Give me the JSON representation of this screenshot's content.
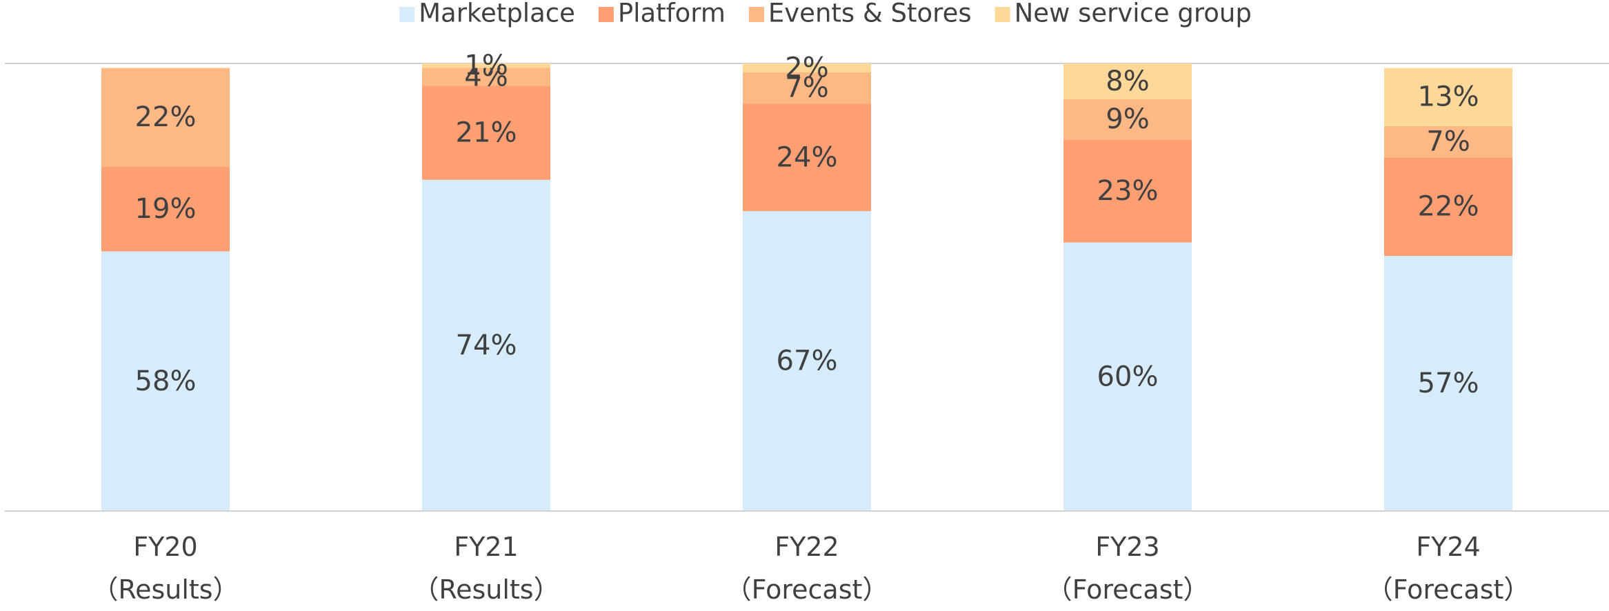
{
  "chart_data": {
    "type": "stacked_bar",
    "categories": [
      "FY20\n（Results）",
      "FY21\n（Results）",
      "FY22\n（Forecast）",
      "FY23\n（Forecast）",
      "FY24\n（Forecast）"
    ],
    "series": [
      {
        "name": "Marketplace",
        "color": "#d6ecfb",
        "values": [
          58,
          74,
          67,
          60,
          57
        ],
        "value_labels": [
          "58%",
          "74%",
          "67%",
          "60%",
          "57%"
        ]
      },
      {
        "name": "Platform",
        "color": "#fe9f73",
        "values": [
          19,
          21,
          24,
          23,
          22
        ],
        "value_labels": [
          "19%",
          "21%",
          "24%",
          "23%",
          "22%"
        ]
      },
      {
        "name": "Events & Stores",
        "color": "#fdb885",
        "values": [
          22,
          4,
          7,
          9,
          7
        ],
        "value_labels": [
          "22%",
          "4%",
          "7%",
          "9%",
          "7%"
        ]
      },
      {
        "name": "New service group",
        "color": "#fed898",
        "values": [
          null,
          1,
          2,
          8,
          13
        ],
        "value_labels": [
          null,
          "1%",
          "2%",
          "8%",
          "13%"
        ]
      }
    ],
    "ylim": [
      0,
      100
    ],
    "legend": "top"
  }
}
